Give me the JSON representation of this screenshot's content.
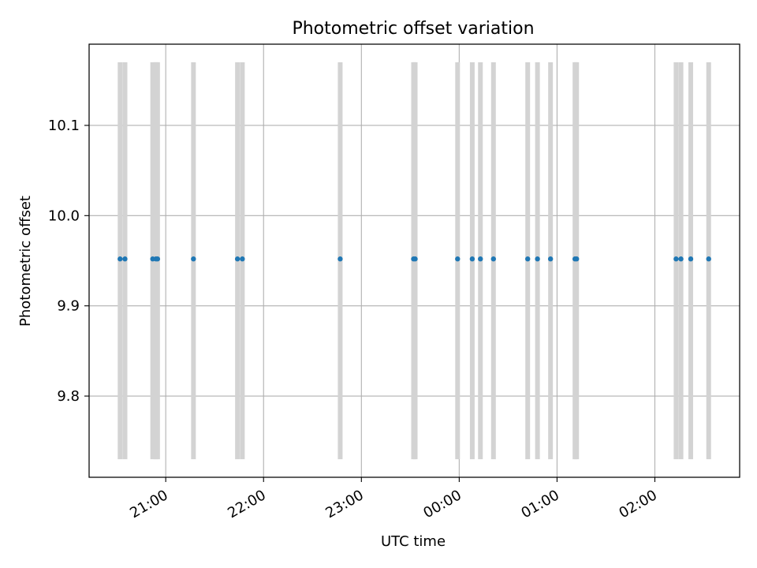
{
  "chart_data": {
    "type": "scatter",
    "title": "Photometric offset variation",
    "xlabel": "UTC time",
    "ylabel": "Photometric offset",
    "grid": true,
    "x_is_time": true,
    "xlim": [
      "20:13",
      "02:52"
    ],
    "ylim": [
      9.71,
      10.19
    ],
    "x_ticks": [
      "21:00",
      "22:00",
      "23:00",
      "00:00",
      "01:00",
      "02:00"
    ],
    "y_ticks": [
      9.8,
      9.9,
      10.0,
      10.1
    ],
    "marker_color": "#1f77b4",
    "span_color": "#d3d3d3",
    "span_y": [
      9.73,
      10.17
    ],
    "x": [
      "20:32",
      "20:35",
      "20:52",
      "20:54",
      "20:55",
      "21:17",
      "21:44",
      "21:47",
      "22:47",
      "23:32",
      "23:33",
      "23:59",
      "00:08",
      "00:13",
      "00:21",
      "00:42",
      "00:48",
      "00:56",
      "01:11",
      "01:12",
      "02:13",
      "02:16",
      "02:22",
      "02:33"
    ],
    "y": [
      9.952,
      9.952,
      9.952,
      9.952,
      9.952,
      9.952,
      9.952,
      9.952,
      9.952,
      9.952,
      9.952,
      9.952,
      9.952,
      9.952,
      9.952,
      9.952,
      9.952,
      9.952,
      9.952,
      9.952,
      9.952,
      9.952,
      9.952,
      9.952
    ]
  }
}
